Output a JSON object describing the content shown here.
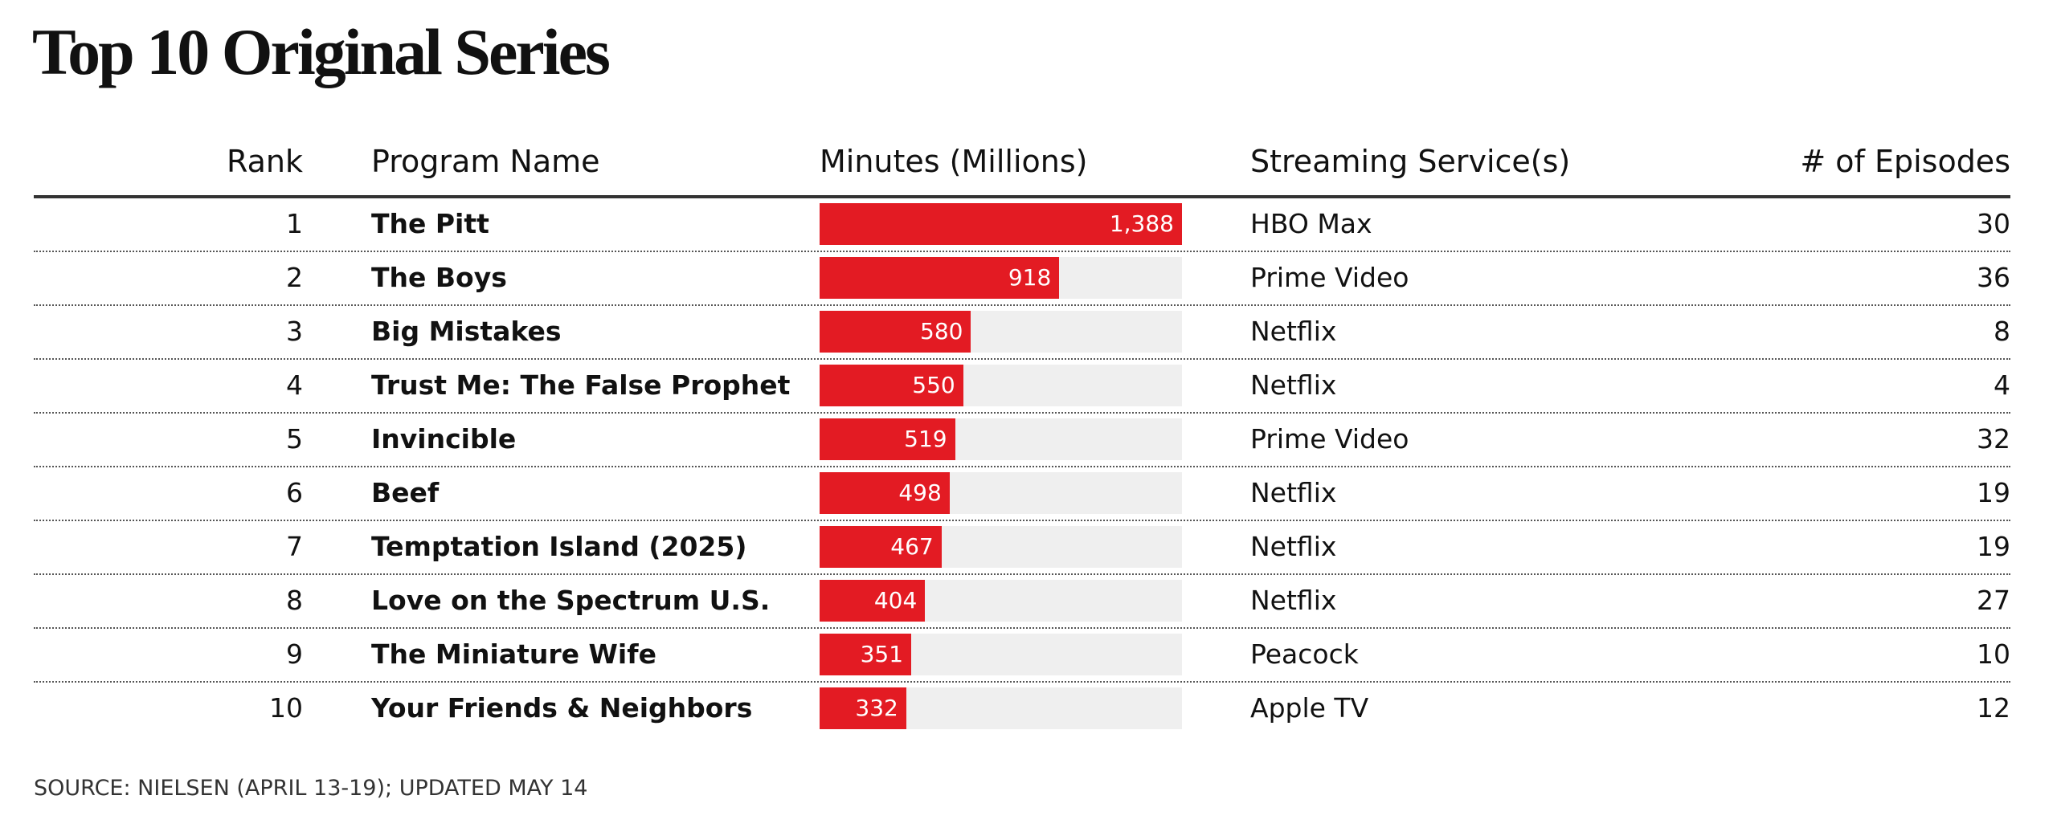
{
  "title": "Top 10 Original Series",
  "columns": [
    "Rank",
    "Program Name",
    "Minutes (Millions)",
    "Streaming Service(s)",
    "# of Episodes"
  ],
  "rows": [
    {
      "rank": 1,
      "program": "The Pitt",
      "minutes": 1388,
      "minutes_label": "1,388",
      "service": "HBO Max",
      "episodes": 30
    },
    {
      "rank": 2,
      "program": "The Boys",
      "minutes": 918,
      "service": "Prime Video",
      "episodes": 36
    },
    {
      "rank": 3,
      "program": "Big Mistakes",
      "minutes": 580,
      "service": "Netflix",
      "episodes": 8
    },
    {
      "rank": 4,
      "program": "Trust Me: The False Prophet",
      "minutes": 550,
      "service": "Netflix",
      "episodes": 4
    },
    {
      "rank": 5,
      "program": "Invincible",
      "minutes": 519,
      "service": "Prime Video",
      "episodes": 32
    },
    {
      "rank": 6,
      "program": "Beef",
      "minutes": 498,
      "service": "Netflix",
      "episodes": 19
    },
    {
      "rank": 7,
      "program": "Temptation Island (2025)",
      "minutes": 467,
      "service": "Netflix",
      "episodes": 19
    },
    {
      "rank": 8,
      "program": "Love on the Spectrum U.S.",
      "minutes": 404,
      "service": "Netflix",
      "episodes": 27
    },
    {
      "rank": 9,
      "program": "The Miniature Wife",
      "minutes": 351,
      "service": "Peacock",
      "episodes": 10
    },
    {
      "rank": 10,
      "program": "Your Friends & Neighbors",
      "minutes": 332,
      "service": "Apple TV",
      "episodes": 12
    }
  ],
  "bar_color": "#e31b23",
  "source": "SOURCE: NIELSEN (APRIL 13-19); UPDATED MAY 14"
}
